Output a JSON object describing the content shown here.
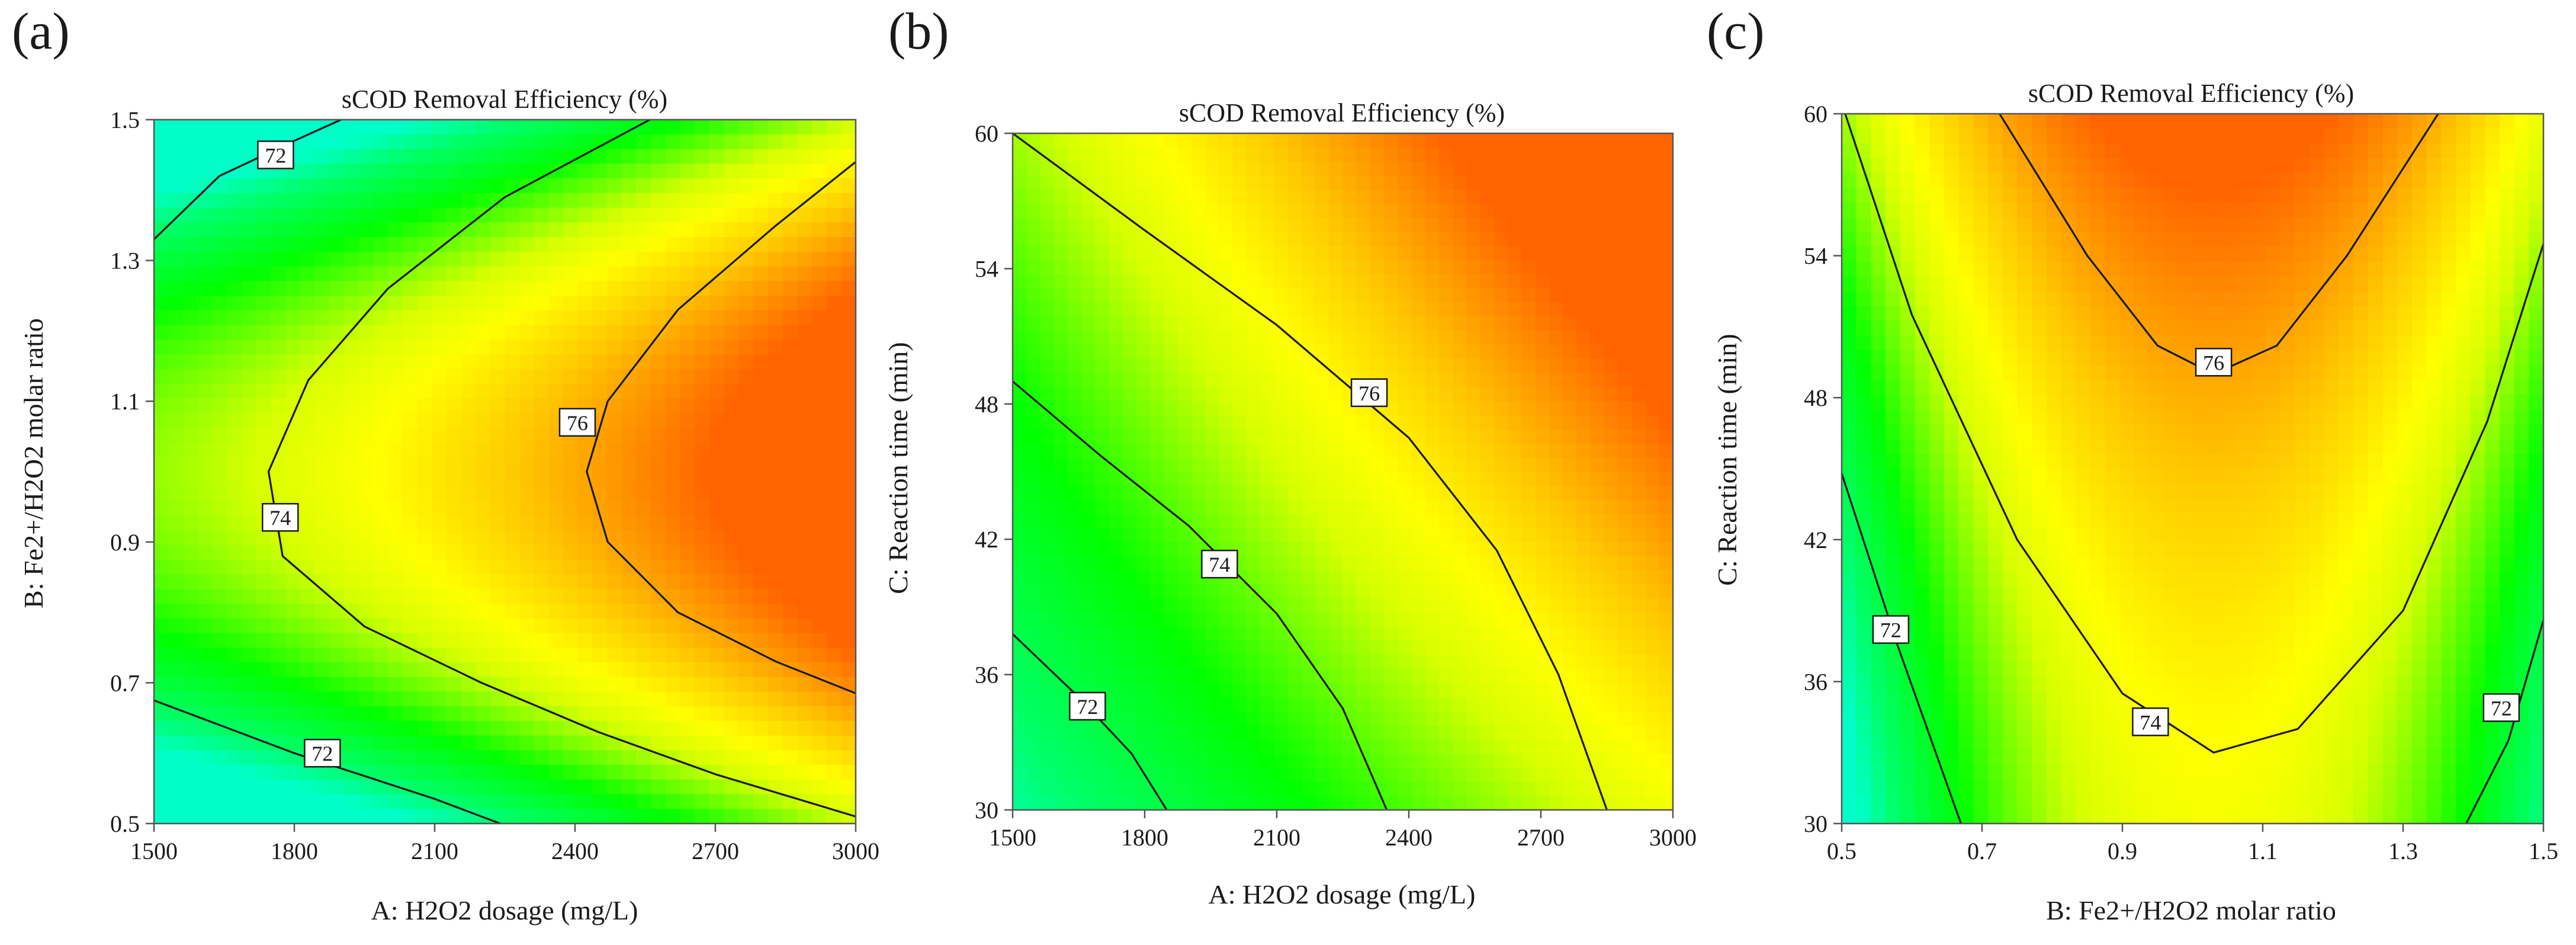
{
  "figure": {
    "colorscale": [
      "#00ffc8",
      "#00ff6a",
      "#00ff00",
      "#d6ff00",
      "#ffff00",
      "#ffc800",
      "#ff9600",
      "#ff6400"
    ],
    "contour_color": "#1a1a1a"
  },
  "chart_data": [
    {
      "type": "contour",
      "panel_label": "(a)",
      "title": "sCOD Removal Efficiency (%)",
      "xlabel": "A: H2O2 dosage (mg/L)",
      "ylabel": "B: Fe2+/H2O2 molar ratio",
      "xlim": [
        1500,
        3000
      ],
      "ylim": [
        0.5,
        1.5
      ],
      "xticks": [
        1500,
        1800,
        2100,
        2400,
        2700,
        3000
      ],
      "yticks": [
        0.5,
        0.7,
        0.9,
        1.1,
        1.3,
        1.5
      ],
      "xtick_labels": [
        "1500",
        "1800",
        "2100",
        "2400",
        "2700",
        "3000"
      ],
      "ytick_labels": [
        "0.5",
        "0.7",
        "0.9",
        "1.1",
        "1.3",
        "1.5"
      ],
      "response_range": [
        70,
        78
      ],
      "contours": [
        {
          "level": 72,
          "segments": [
            [
              [
                1500,
                1.33
              ],
              [
                1640,
                1.42
              ],
              [
                1800,
                1.47
              ],
              [
                1900,
                1.5
              ]
            ],
            [
              [
                1500,
                0.675
              ],
              [
                1800,
                0.6
              ],
              [
                2100,
                0.535
              ],
              [
                2240,
                0.5
              ]
            ]
          ],
          "labels": [
            {
              "text": "72",
              "at": [
                1760,
                1.45
              ]
            },
            {
              "text": "72",
              "at": [
                1860,
                0.6
              ]
            }
          ]
        },
        {
          "level": 74,
          "segments": [
            [
              [
                2560,
                1.5
              ],
              [
                2250,
                1.39
              ],
              [
                2000,
                1.26
              ],
              [
                1830,
                1.13
              ],
              [
                1745,
                1.0
              ],
              [
                1775,
                0.88
              ],
              [
                1950,
                0.78
              ],
              [
                2200,
                0.7
              ],
              [
                2450,
                0.63
              ],
              [
                2700,
                0.57
              ],
              [
                3000,
                0.51
              ]
            ]
          ],
          "labels": [
            {
              "text": "74",
              "at": [
                1770,
                0.935
              ]
            }
          ]
        },
        {
          "level": 76,
          "segments": [
            [
              [
                3000,
                1.44
              ],
              [
                2830,
                1.35
              ],
              [
                2620,
                1.23
              ],
              [
                2470,
                1.1
              ],
              [
                2425,
                1.0
              ],
              [
                2470,
                0.9
              ],
              [
                2620,
                0.8
              ],
              [
                2830,
                0.73
              ],
              [
                3000,
                0.685
              ]
            ]
          ],
          "labels": [
            {
              "text": "76",
              "at": [
                2405,
                1.07
              ]
            }
          ]
        }
      ]
    },
    {
      "type": "contour",
      "panel_label": "(b)",
      "title": "sCOD Removal Efficiency (%)",
      "xlabel": "A: H2O2 dosage (mg/L)",
      "ylabel": "C: Reaction time (min)",
      "xlim": [
        1500,
        3000
      ],
      "ylim": [
        30,
        60
      ],
      "xticks": [
        1500,
        1800,
        2100,
        2400,
        2700,
        3000
      ],
      "yticks": [
        30,
        36,
        42,
        48,
        54,
        60
      ],
      "xtick_labels": [
        "1500",
        "1800",
        "2100",
        "2400",
        "2700",
        "3000"
      ],
      "ytick_labels": [
        "30",
        "36",
        "42",
        "48",
        "54",
        "60"
      ],
      "response_range": [
        70,
        80
      ],
      "contours": [
        {
          "level": 72,
          "segments": [
            [
              [
                1500,
                37.8
              ],
              [
                1650,
                35.0
              ],
              [
                1770,
                32.5
              ],
              [
                1850,
                30.0
              ]
            ]
          ],
          "labels": [
            {
              "text": "72",
              "at": [
                1670,
                34.6
              ]
            }
          ]
        },
        {
          "level": 74,
          "segments": [
            [
              [
                1500,
                49.0
              ],
              [
                1700,
                45.7
              ],
              [
                1900,
                42.6
              ],
              [
                2100,
                38.7
              ],
              [
                2250,
                34.5
              ],
              [
                2350,
                30.0
              ]
            ]
          ],
          "labels": [
            {
              "text": "74",
              "at": [
                1970,
                40.9
              ]
            }
          ]
        },
        {
          "level": 76,
          "segments": [
            [
              [
                1500,
                60.0
              ],
              [
                1800,
                55.7
              ],
              [
                2100,
                51.5
              ],
              [
                2400,
                46.5
              ],
              [
                2600,
                41.5
              ],
              [
                2740,
                36.0
              ],
              [
                2850,
                30.0
              ]
            ]
          ],
          "labels": [
            {
              "text": "76",
              "at": [
                2310,
                48.5
              ]
            }
          ]
        }
      ]
    },
    {
      "type": "contour",
      "panel_label": "(c)",
      "title": "sCOD Removal Efficiency (%)",
      "xlabel": "B: Fe2+/H2O2 molar ratio",
      "ylabel": "C: Reaction time (min)",
      "xlim": [
        0.5,
        1.5
      ],
      "ylim": [
        30,
        60
      ],
      "xticks": [
        0.5,
        0.7,
        0.9,
        1.1,
        1.3,
        1.5
      ],
      "yticks": [
        30,
        36,
        42,
        48,
        54,
        60
      ],
      "xtick_labels": [
        "0.5",
        "0.7",
        "0.9",
        "1.1",
        "1.3",
        "1.5"
      ],
      "ytick_labels": [
        "30",
        "36",
        "42",
        "48",
        "54",
        "60"
      ],
      "response_range": [
        70,
        78
      ],
      "contours": [
        {
          "level": 72,
          "segments": [
            [
              [
                0.5,
                44.8
              ],
              [
                0.58,
                37.5
              ],
              [
                0.67,
                30.0
              ]
            ],
            [
              [
                1.39,
                30.0
              ],
              [
                1.45,
                33.5
              ],
              [
                1.5,
                38.6
              ]
            ]
          ],
          "labels": [
            {
              "text": "72",
              "at": [
                0.57,
                38.2
              ]
            },
            {
              "text": "72",
              "at": [
                1.44,
                34.9
              ]
            }
          ]
        },
        {
          "level": 74,
          "segments": [
            [
              [
                0.505,
                60.0
              ],
              [
                0.6,
                51.5
              ],
              [
                0.75,
                42.0
              ],
              [
                0.9,
                35.5
              ],
              [
                1.03,
                33.0
              ],
              [
                1.15,
                34.0
              ],
              [
                1.3,
                39.0
              ],
              [
                1.42,
                47.0
              ],
              [
                1.5,
                54.5
              ]
            ]
          ],
          "labels": [
            {
              "text": "74",
              "at": [
                0.94,
                34.3
              ]
            }
          ]
        },
        {
          "level": 76,
          "segments": [
            [
              [
                0.725,
                60.0
              ],
              [
                0.85,
                54.0
              ],
              [
                0.95,
                50.2
              ],
              [
                1.03,
                49.0
              ],
              [
                1.12,
                50.2
              ],
              [
                1.22,
                54.0
              ],
              [
                1.35,
                60.0
              ]
            ]
          ],
          "labels": [
            {
              "text": "76",
              "at": [
                1.03,
                49.5
              ]
            }
          ]
        }
      ]
    }
  ]
}
